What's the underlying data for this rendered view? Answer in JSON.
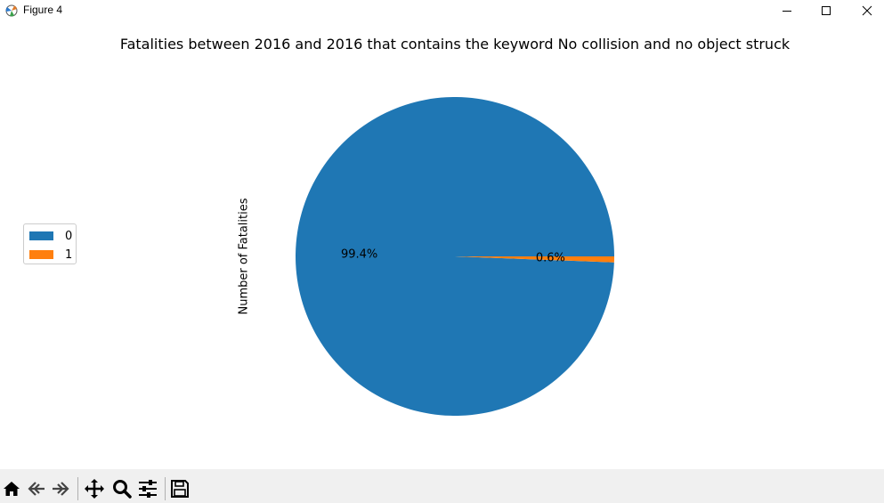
{
  "window": {
    "title": "Figure 4"
  },
  "chart_data": {
    "type": "pie",
    "title": "Fatalities between 2016 and 2016 that contains the keyword No collision and no object struck",
    "ylabel": "Number of Fatalities",
    "categories": [
      "0",
      "1"
    ],
    "values": [
      99.4,
      0.6
    ],
    "labels": [
      "99.4%",
      "0.6%"
    ],
    "colors": [
      "#1f77b4",
      "#ff7f0e"
    ],
    "legend": {
      "placement": "left",
      "entries": [
        "0",
        "1"
      ]
    },
    "start_angle_deg": 0,
    "direction": "counterclockwise"
  },
  "toolbar": {
    "icons": [
      "home-icon",
      "back-icon",
      "forward-icon",
      "pan-icon",
      "zoom-icon",
      "configure-subplots-icon",
      "save-icon"
    ]
  }
}
